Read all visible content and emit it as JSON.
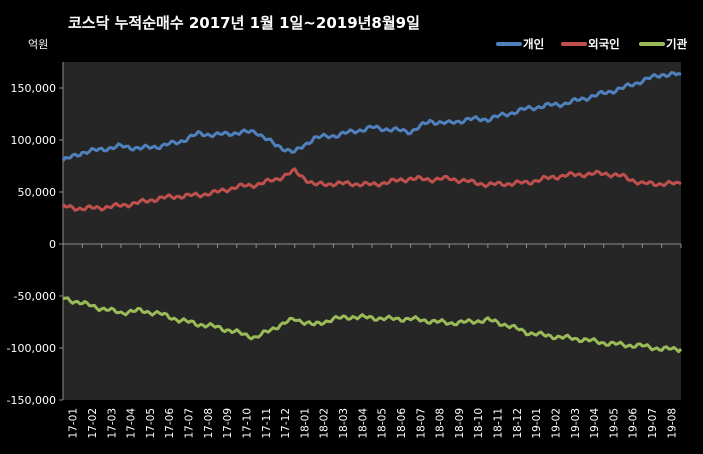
{
  "chart_data": {
    "type": "line",
    "title": "코스닥 누적순매수 2017년 1월 1일~2019년8월9일",
    "ylabel": "억원",
    "ylim": [
      -150000,
      175000
    ],
    "yticks": [
      "150,000",
      "100,000",
      "50,000",
      "0",
      "-50,000",
      "-100,000",
      "-150,000"
    ],
    "ytick_values": [
      150000,
      100000,
      50000,
      0,
      -50000,
      -100000,
      -150000
    ],
    "grid": false,
    "legend_position": "top-right",
    "x": [
      "17-01",
      "17-02",
      "17-03",
      "17-04",
      "17-05",
      "17-06",
      "17-07",
      "17-08",
      "17-09",
      "17-10",
      "17-11",
      "17-12",
      "18-01",
      "18-02",
      "18-03",
      "18-04",
      "18-05",
      "18-06",
      "18-07",
      "18-08",
      "18-09",
      "18-10",
      "18-11",
      "18-12",
      "19-01",
      "19-02",
      "19-03",
      "19-04",
      "19-05",
      "19-06",
      "19-07",
      "19-08"
    ],
    "series": [
      {
        "name": "개인",
        "color": "#4f81bd",
        "values": [
          80000,
          88000,
          91000,
          94000,
          92000,
          94000,
          98000,
          106000,
          105000,
          107000,
          108000,
          95000,
          88000,
          102000,
          104000,
          108000,
          112000,
          110000,
          108000,
          118000,
          116000,
          120000,
          120000,
          125000,
          130000,
          133000,
          135000,
          140000,
          145000,
          150000,
          157000,
          163000
        ]
      },
      {
        "name": "외국인",
        "color": "#c0504d",
        "values": [
          36000,
          34000,
          35000,
          37000,
          40000,
          44000,
          46000,
          47000,
          50000,
          55000,
          57000,
          62000,
          70000,
          57000,
          58000,
          58000,
          57000,
          60000,
          63000,
          62000,
          63000,
          60000,
          57000,
          58000,
          59000,
          63000,
          66000,
          67000,
          68000,
          65000,
          58000,
          58000
        ]
      },
      {
        "name": "기관",
        "color": "#9bbb59",
        "values": [
          -52000,
          -57000,
          -62000,
          -66000,
          -64000,
          -67000,
          -73000,
          -77000,
          -80000,
          -85000,
          -90000,
          -80000,
          -72000,
          -78000,
          -72000,
          -70000,
          -71000,
          -72000,
          -72000,
          -74000,
          -76000,
          -75000,
          -73000,
          -78000,
          -85000,
          -88000,
          -90000,
          -92000,
          -95000,
          -97000,
          -98000,
          -101000
        ]
      }
    ]
  }
}
